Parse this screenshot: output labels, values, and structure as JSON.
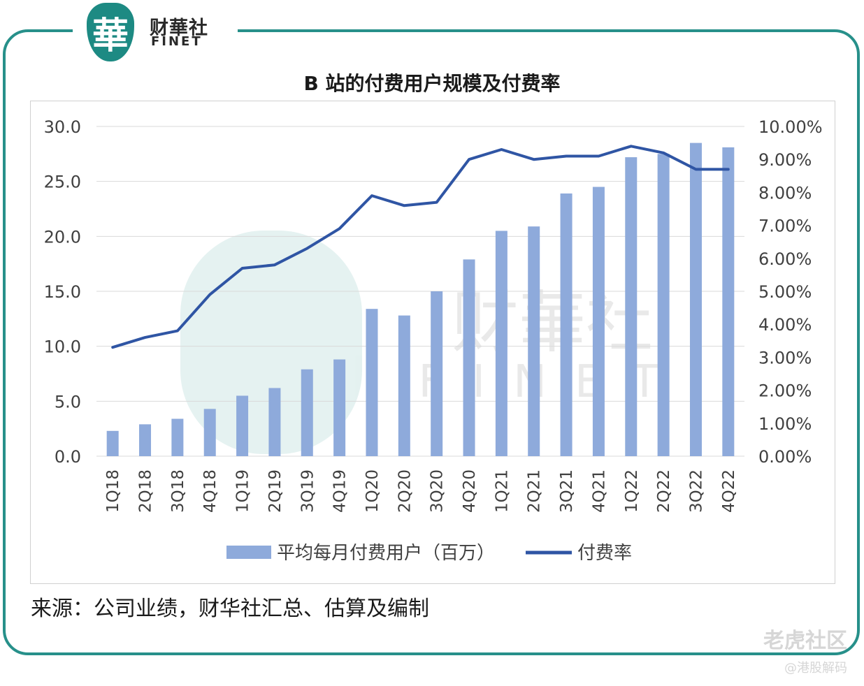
{
  "brand": {
    "logo_char": "華",
    "name_cn": "财華社",
    "name_en": "FINET"
  },
  "title": "B 站的付费用户规模及付费率",
  "source": "来源：公司业绩，财华社汇总、估算及编制",
  "footer_watermark": {
    "site": "老虎社区",
    "handle": "@港股解码"
  },
  "colors": {
    "frame": "#27908a",
    "bar": "#8eaadb",
    "line": "#2f55a4",
    "grid": "#d9d9d9",
    "logo": "#1d8a83"
  },
  "chart_data": {
    "type": "bar+line",
    "title": "B 站的付费用户规模及付费率",
    "categories": [
      "1Q18",
      "2Q18",
      "3Q18",
      "4Q18",
      "1Q19",
      "2Q19",
      "3Q19",
      "4Q19",
      "1Q20",
      "2Q20",
      "3Q20",
      "4Q20",
      "1Q21",
      "2Q21",
      "3Q21",
      "4Q21",
      "1Q22",
      "2Q22",
      "3Q22",
      "4Q22"
    ],
    "series": [
      {
        "name": "平均每月付费用户（百万）",
        "type": "bar",
        "axis": "left",
        "values": [
          2.3,
          2.9,
          3.4,
          4.3,
          5.5,
          6.2,
          7.9,
          8.8,
          13.4,
          12.8,
          15.0,
          17.9,
          20.5,
          20.9,
          23.9,
          24.5,
          27.2,
          27.5,
          28.5,
          28.1
        ]
      },
      {
        "name": "付费率",
        "type": "line",
        "axis": "right",
        "values": [
          3.3,
          3.6,
          3.8,
          4.9,
          5.7,
          5.8,
          6.3,
          6.9,
          7.9,
          7.6,
          7.7,
          9.0,
          9.3,
          9.0,
          9.1,
          9.1,
          9.4,
          9.2,
          8.7,
          8.7
        ]
      }
    ],
    "y_left": {
      "min": 0,
      "max": 30,
      "step": 5,
      "ticks": [
        "0.0",
        "5.0",
        "10.0",
        "15.0",
        "20.0",
        "25.0",
        "30.0"
      ]
    },
    "y_right": {
      "min": 0,
      "max": 10,
      "step": 1,
      "ticks": [
        "0.00%",
        "1.00%",
        "2.00%",
        "3.00%",
        "4.00%",
        "5.00%",
        "6.00%",
        "7.00%",
        "8.00%",
        "9.00%",
        "10.00%"
      ]
    },
    "legend": {
      "position": "bottom",
      "entries": [
        "平均每月付费用户（百万）",
        "付费率"
      ]
    },
    "grid": true
  }
}
